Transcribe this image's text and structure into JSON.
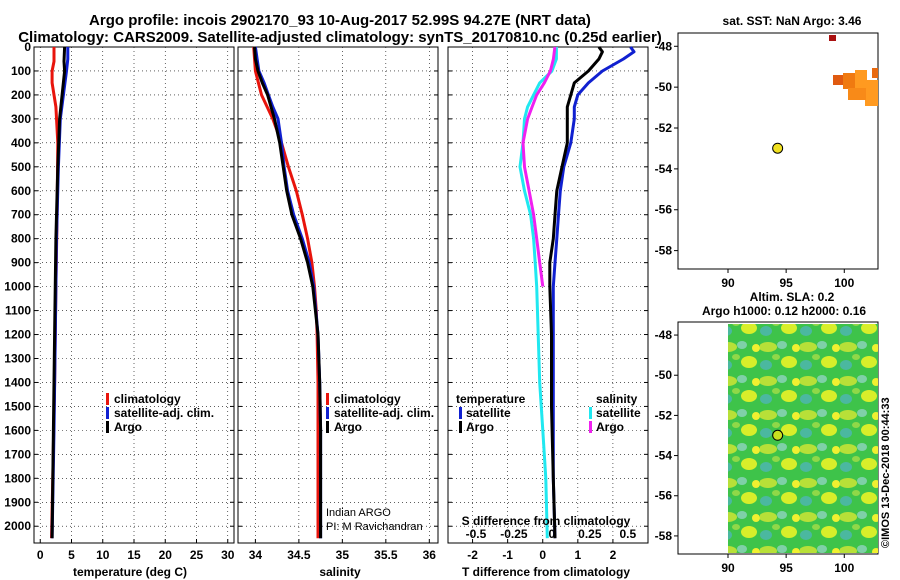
{
  "header": {
    "title_line1": "Argo profile: incois 2902170_93 10-Aug-2017 52.99S 94.27E (NRT data)",
    "title_line2": "Climatology: CARS2009. Satellite-adjusted climatology: synTS_20170810.nc (0.25d earlier)"
  },
  "colors": {
    "climatology": "#e8140c",
    "satellite": "#1020d0",
    "argo": "#000000",
    "sat_salinity": "#20e8f0",
    "argo_salinity": "#f020f0"
  },
  "chart_data": [
    {
      "id": "temperature",
      "type": "line",
      "xlabel": "temperature (deg C)",
      "ylabel": "",
      "xlim": [
        -1,
        31
      ],
      "ylim": [
        2070,
        0
      ],
      "xticks": [
        0,
        5,
        10,
        15,
        20,
        25,
        30
      ],
      "yticks": [
        0,
        100,
        200,
        300,
        400,
        500,
        600,
        700,
        800,
        900,
        1000,
        1100,
        1200,
        1300,
        1400,
        1500,
        1600,
        1700,
        1800,
        1900,
        2000
      ],
      "grid": true,
      "legend": [
        "climatology",
        "satellite-adj. clim.",
        "Argo"
      ],
      "series": [
        {
          "name": "climatology",
          "color": "#e8140c",
          "depth": [
            0,
            60,
            100,
            150,
            250,
            400,
            700,
            1000,
            1400,
            1800,
            2050
          ],
          "values": [
            2.2,
            2.2,
            1.9,
            1.9,
            2.5,
            2.8,
            2.7,
            2.5,
            2.3,
            2.0,
            1.8
          ]
        },
        {
          "name": "satellite-adj. clim.",
          "color": "#1020d0",
          "depth": [
            0,
            50,
            100,
            200,
            300,
            500,
            800,
            1200,
            1600,
            2050
          ],
          "values": [
            4.4,
            4.4,
            4.2,
            3.7,
            3.2,
            2.9,
            2.6,
            2.4,
            2.2,
            1.9
          ]
        },
        {
          "name": "Argo",
          "color": "#000000",
          "depth": [
            0,
            60,
            100,
            200,
            300,
            500,
            800,
            1200,
            1600,
            2050
          ],
          "values": [
            3.9,
            3.8,
            3.9,
            3.5,
            3.1,
            2.8,
            2.5,
            2.3,
            2.1,
            1.9
          ]
        }
      ]
    },
    {
      "id": "salinity",
      "type": "line",
      "xlabel": "salinity",
      "ylabel": "",
      "xlim": [
        33.8,
        36.1
      ],
      "ylim": [
        2070,
        0
      ],
      "xticks": [
        34,
        34.5,
        35,
        35.5,
        36
      ],
      "xticklabels": [
        "34",
        "34.5",
        "35",
        "35.5",
        "36"
      ],
      "grid": true,
      "legend": [
        "climatology",
        "satellite-adj. clim.",
        "Argo"
      ],
      "credit_line1": "Indian ARGO",
      "credit_line2": "PI: M Ravichandran",
      "series": [
        {
          "name": "climatology",
          "color": "#e8140c",
          "depth": [
            0,
            100,
            200,
            300,
            400,
            500,
            600,
            700,
            800,
            900,
            1000,
            1100,
            1200,
            1400,
            1600,
            1800,
            2050
          ],
          "values": [
            33.98,
            34.0,
            34.07,
            34.2,
            34.3,
            34.38,
            34.47,
            34.54,
            34.6,
            34.65,
            34.68,
            34.7,
            34.71,
            34.72,
            34.72,
            34.72,
            34.72
          ]
        },
        {
          "name": "satellite-adj. clim.",
          "color": "#1020d0",
          "depth": [
            0,
            50,
            100,
            150,
            200,
            250,
            300,
            400,
            500,
            600,
            700,
            800,
            900,
            1000,
            1200,
            1400,
            1600,
            1800,
            2050
          ],
          "values": [
            34.0,
            34.02,
            34.04,
            34.1,
            34.15,
            34.2,
            34.26,
            34.3,
            34.33,
            34.37,
            34.44,
            34.54,
            34.62,
            34.67,
            34.72,
            34.74,
            34.75,
            34.75,
            34.75
          ]
        },
        {
          "name": "Argo",
          "color": "#000000",
          "depth": [
            0,
            50,
            100,
            150,
            200,
            250,
            300,
            400,
            500,
            600,
            700,
            800,
            900,
            1000,
            1200,
            1400,
            1600,
            1800,
            2050
          ],
          "values": [
            33.99,
            34.0,
            34.03,
            34.08,
            34.14,
            34.18,
            34.22,
            34.28,
            34.32,
            34.36,
            34.42,
            34.52,
            34.6,
            34.66,
            34.72,
            34.74,
            34.75,
            34.75,
            34.75
          ]
        }
      ]
    },
    {
      "id": "difference",
      "type": "line",
      "xlabel": "T difference from climatology",
      "top_axis_label": "S difference from climatology",
      "xlim": [
        -2.7,
        3.0
      ],
      "ylim": [
        2070,
        0
      ],
      "xticks": [
        -2,
        -1,
        0,
        1,
        2
      ],
      "xticklabels": [
        "-2",
        "-1",
        "0",
        "1",
        "2"
      ],
      "sticks": [
        -0.5,
        -0.25,
        0,
        0.25,
        0.5
      ],
      "sticklabels": [
        "-0.5",
        "-0.25",
        "0",
        "0.25",
        "0.5"
      ],
      "grid": true,
      "legend_temperature_title": "temperature",
      "legend_salinity_title": "salinity",
      "legend_temperature": [
        "satellite",
        "Argo"
      ],
      "legend_salinity": [
        "satellite",
        "Argo"
      ],
      "series": [
        {
          "name": "T satellite",
          "color": "#1020d0",
          "depth": [
            0,
            20,
            50,
            100,
            150,
            200,
            250,
            300,
            400,
            500,
            600,
            700,
            800,
            900,
            1000,
            1200,
            1500,
            1800,
            2050
          ],
          "values": [
            2.5,
            2.6,
            2.3,
            1.7,
            1.3,
            1.0,
            0.9,
            0.9,
            0.8,
            0.6,
            0.5,
            0.45,
            0.4,
            0.35,
            0.3,
            0.3,
            0.3,
            0.3,
            0.35
          ]
        },
        {
          "name": "T Argo",
          "color": "#000000",
          "depth": [
            0,
            20,
            50,
            100,
            150,
            200,
            250,
            300,
            400,
            500,
            600,
            700,
            800,
            900,
            1000,
            1200,
            1500,
            1800,
            2050
          ],
          "values": [
            1.6,
            1.7,
            1.6,
            1.3,
            0.9,
            0.8,
            0.7,
            0.7,
            0.7,
            0.55,
            0.4,
            0.35,
            0.3,
            0.2,
            0.2,
            0.25,
            0.25,
            0.3,
            0.35
          ]
        },
        {
          "name": "S satellite",
          "color": "#20e8f0",
          "depth": [
            0,
            50,
            100,
            150,
            200,
            250,
            300,
            400,
            500,
            600,
            700,
            800,
            900,
            1000,
            1200,
            1400,
            1600,
            1800,
            2050
          ],
          "values": [
            0.03,
            0.03,
            0.0,
            -0.08,
            -0.12,
            -0.16,
            -0.18,
            -0.19,
            -0.21,
            -0.18,
            -0.14,
            -0.12,
            -0.11,
            -0.1,
            -0.09,
            -0.08,
            -0.06,
            -0.04,
            -0.03
          ]
        },
        {
          "name": "S Argo",
          "color": "#f020f0",
          "depth": [
            0,
            50,
            100,
            150,
            200,
            250,
            300,
            400,
            500,
            600,
            700,
            800,
            900,
            1000
          ],
          "values": [
            0.02,
            0.01,
            -0.01,
            -0.05,
            -0.1,
            -0.13,
            -0.16,
            -0.19,
            -0.18,
            -0.15,
            -0.12,
            -0.1,
            -0.08,
            -0.06
          ]
        }
      ]
    }
  ],
  "maps": {
    "sst": {
      "title": "sat. SST: NaN Argo: 3.46",
      "xticks": [
        "90",
        "95",
        "100"
      ],
      "yticks": [
        "-48",
        "-50",
        "-52",
        "-54",
        "-56",
        "-58"
      ],
      "argo_lon": 94.27,
      "argo_lat": -52.99
    },
    "sla": {
      "title_line1": "Altim. SLA: 0.2",
      "title_line2": "Argo h1000: 0.12 h2000: 0.16",
      "xticks": [
        "90",
        "95",
        "100"
      ],
      "yticks": [
        "-48",
        "-50",
        "-52",
        "-54",
        "-56",
        "-58"
      ],
      "argo_lon": 94.27,
      "argo_lat": -52.99
    }
  },
  "stamp": "©IMOS 13-Dec-2018 00:44:33"
}
